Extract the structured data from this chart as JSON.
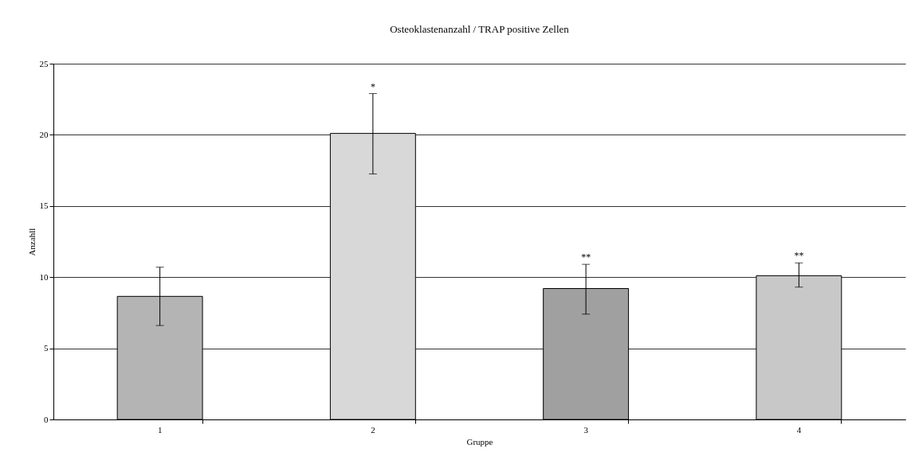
{
  "chart_data": {
    "type": "bar",
    "title": "Osteoklastenanzahl / TRAP positive Zellen",
    "xlabel": "Gruppe",
    "ylabel": "Anzahll",
    "categories": [
      "1",
      "2",
      "3",
      "4"
    ],
    "values": [
      8.65,
      20.1,
      9.2,
      10.1
    ],
    "colors": [
      "#b4b4b4",
      "#d8d8d8",
      "#a0a0a0",
      "#c8c8c8"
    ],
    "errors": [
      [
        6.6,
        10.7
      ],
      [
        17.25,
        22.9
      ],
      [
        7.4,
        10.9
      ],
      [
        9.3,
        11.0
      ]
    ],
    "annotations": [
      "*",
      "**",
      "**"
    ],
    "ylim": [
      0,
      25
    ],
    "yticks": [
      0,
      5,
      10,
      15,
      20,
      25
    ],
    "grid": "y"
  }
}
